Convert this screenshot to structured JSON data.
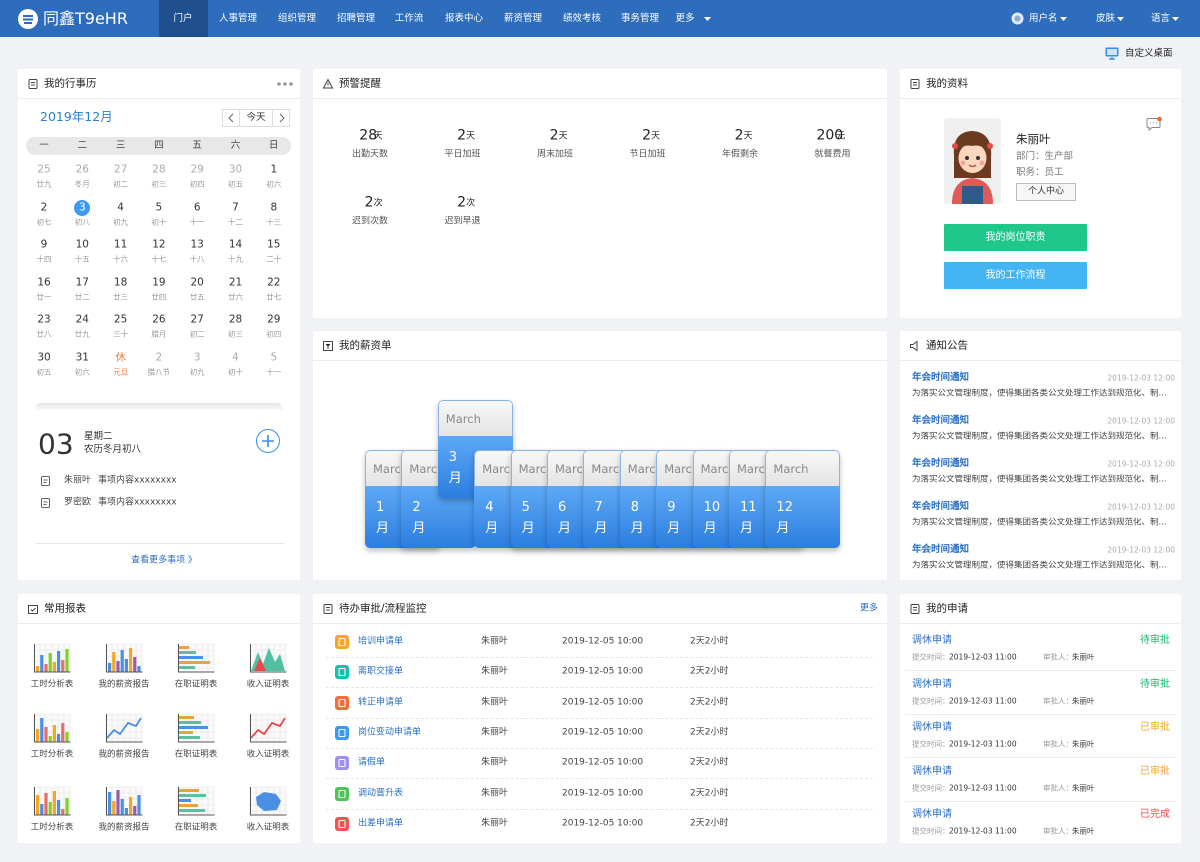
{
  "nav": {
    "logo": "同鑫T9eHR",
    "items": [
      "门户",
      "人事管理",
      "组织管理",
      "招聘管理",
      "工作流",
      "报表中心",
      "薪资管理",
      "绩效考核",
      "事务管理",
      "更多"
    ],
    "active": 0,
    "user": "用户名",
    "skin": "皮肤",
    "language": "语言"
  },
  "toolbar": {
    "customize": "自定义桌面"
  },
  "calendar": {
    "title": "我的行事历",
    "month": "2019年12月",
    "today_button": "今天",
    "weekdays": [
      "一",
      "二",
      "三",
      "四",
      "五",
      "六",
      "日"
    ],
    "prev_days": [
      {
        "day": "25",
        "lunar": "廿九"
      },
      {
        "day": "26",
        "lunar": "冬月"
      },
      {
        "day": "27",
        "lunar": "初二"
      },
      {
        "day": "28",
        "lunar": "初三"
      },
      {
        "day": "29",
        "lunar": "初四"
      },
      {
        "day": "30",
        "lunar": "初五"
      }
    ],
    "days": [
      {
        "day": "1",
        "lunar": "初六"
      },
      {
        "day": "2",
        "lunar": "初七"
      },
      {
        "day": "3",
        "lunar": "初八"
      },
      {
        "day": "4",
        "lunar": "初九"
      },
      {
        "day": "5",
        "lunar": "初十"
      },
      {
        "day": "6",
        "lunar": "十一"
      },
      {
        "day": "7",
        "lunar": "十二"
      },
      {
        "day": "8",
        "lunar": "十三"
      },
      {
        "day": "9",
        "lunar": "十四"
      },
      {
        "day": "10",
        "lunar": "十五"
      },
      {
        "day": "11",
        "lunar": "十六"
      },
      {
        "day": "12",
        "lunar": "十七"
      },
      {
        "day": "13",
        "lunar": "十八"
      },
      {
        "day": "14",
        "lunar": "十九"
      },
      {
        "day": "15",
        "lunar": "二十"
      },
      {
        "day": "16",
        "lunar": "廿一"
      },
      {
        "day": "17",
        "lunar": "廿二"
      },
      {
        "day": "18",
        "lunar": "廿三"
      },
      {
        "day": "19",
        "lunar": "廿四"
      },
      {
        "day": "20",
        "lunar": "廿五"
      },
      {
        "day": "21",
        "lunar": "廿六"
      },
      {
        "day": "22",
        "lunar": "廿七"
      },
      {
        "day": "23",
        "lunar": "廿八"
      },
      {
        "day": "24",
        "lunar": "廿九"
      },
      {
        "day": "25",
        "lunar": "三十"
      },
      {
        "day": "26",
        "lunar": "腊月"
      },
      {
        "day": "27",
        "lunar": "初二"
      },
      {
        "day": "28",
        "lunar": "初三"
      },
      {
        "day": "29",
        "lunar": "初四"
      },
      {
        "day": "30",
        "lunar": "初五"
      },
      {
        "day": "31",
        "lunar": "初六"
      }
    ],
    "next_days": [
      {
        "day": "休",
        "lunar": "元旦",
        "color": "#f0813e"
      },
      {
        "day": "2",
        "lunar": "腊八节"
      },
      {
        "day": "3",
        "lunar": "初九"
      },
      {
        "day": "4",
        "lunar": "初十"
      },
      {
        "day": "5",
        "lunar": "十一"
      }
    ],
    "selected_index": 2,
    "detail": {
      "day": "03",
      "weekday": "星期二",
      "lunar": "农历冬月初八",
      "events": [
        {
          "name": "朱丽叶",
          "content": "事项内容xxxxxxxx"
        },
        {
          "name": "罗密欧",
          "content": "事项内容xxxxxxxx"
        }
      ],
      "more": "查看更多事项 》"
    }
  },
  "alerts": {
    "title": "预警提醒",
    "items": [
      {
        "value": 28,
        "unit": "天",
        "label": "出勤天数"
      },
      {
        "value": 2,
        "unit": "天",
        "label": "平日加班"
      },
      {
        "value": 2,
        "unit": "天",
        "label": "周末加班"
      },
      {
        "value": 2,
        "unit": "天",
        "label": "节日加班"
      },
      {
        "value": 2,
        "unit": "天",
        "label": "年假剩余"
      },
      {
        "value": 200,
        "unit": "元",
        "label": "就餐费用"
      },
      {
        "value": 2,
        "unit": "次",
        "label": "迟到次数"
      },
      {
        "value": 2,
        "unit": "次",
        "label": "迟到早退"
      }
    ]
  },
  "profile": {
    "title": "我的资料",
    "name": "朱丽叶",
    "department": "部门：生产部",
    "position": "职务：员工",
    "center_button": "个人中心",
    "buttons": [
      {
        "label": "我的岗位职责",
        "color": "#1fc78c"
      },
      {
        "label": "我的工作流程",
        "color": "#45b4f3"
      }
    ]
  },
  "payslip": {
    "title": "我的薪资单",
    "raised": 2,
    "cards": [
      {
        "header": "March",
        "month": "1月"
      },
      {
        "header": "March",
        "month": "2月"
      },
      {
        "header": "March",
        "month": "3月"
      },
      {
        "header": "March",
        "month": "4月"
      },
      {
        "header": "March",
        "month": "5月"
      },
      {
        "header": "March",
        "month": "6月"
      },
      {
        "header": "March",
        "month": "7月"
      },
      {
        "header": "March",
        "month": "8月"
      },
      {
        "header": "March",
        "month": "9月"
      },
      {
        "header": "March",
        "month": "10月"
      },
      {
        "header": "March",
        "month": "11月"
      },
      {
        "header": "March",
        "month": "12月"
      }
    ]
  },
  "notices": {
    "title": "通知公告",
    "items": [
      {
        "title": "年会时间通知",
        "time": "2019-12-03 12:00",
        "text": "为落实公文管理制度，使得集团各类公文处理工作达到规范化、制..."
      },
      {
        "title": "年会时间通知",
        "time": "2019-12-03 12:00",
        "text": "为落实公文管理制度，使得集团各类公文处理工作达到规范化、制..."
      },
      {
        "title": "年会时间通知",
        "time": "2019-12-03 12:00",
        "text": "为落实公文管理制度，使得集团各类公文处理工作达到规范化、制..."
      },
      {
        "title": "年会时间通知",
        "time": "2019-12-03 12:00",
        "text": "为落实公文管理制度，使得集团各类公文处理工作达到规范化、制..."
      },
      {
        "title": "年会时间通知",
        "time": "2019-12-03 12:00",
        "text": "为落实公文管理制度，使得集团各类公文处理工作达到规范化、制..."
      }
    ]
  },
  "reports": {
    "title": "常用报表",
    "items": [
      "工时分析表",
      "我的薪资报告",
      "在职证明表",
      "收入证明表",
      "工时分析表",
      "我的薪资报告",
      "在职证明表",
      "收入证明表",
      "工时分析表",
      "我的薪资报告",
      "在职证明表",
      "收入证明表"
    ]
  },
  "todo": {
    "title": "待办审批/流程监控",
    "more": "更多",
    "rows": [
      {
        "name": "培训申请单",
        "color": "#f5a623",
        "person": "朱丽叶",
        "time": "2019-12-05 10:00",
        "duration": "2天2小时"
      },
      {
        "name": "离职交接单",
        "color": "#1bbfae",
        "person": "朱丽叶",
        "time": "2019-12-05 10:00",
        "duration": "2天2小时"
      },
      {
        "name": "转正申请单",
        "color": "#f36d3d",
        "person": "朱丽叶",
        "time": "2019-12-05 10:00",
        "duration": "2天2小时"
      },
      {
        "name": "岗位变动申请单",
        "color": "#3a9bf0",
        "person": "朱丽叶",
        "time": "2019-12-05 10:00",
        "duration": "2天2小时"
      },
      {
        "name": "请假单",
        "color": "#a08ef2",
        "person": "朱丽叶",
        "time": "2019-12-05 10:00",
        "duration": "2天2小时"
      },
      {
        "name": "调动晋升表",
        "color": "#4cc35a",
        "person": "朱丽叶",
        "time": "2019-12-05 10:00",
        "duration": "2天2小时"
      },
      {
        "name": "出差申请单",
        "color": "#f05454",
        "person": "朱丽叶",
        "time": "2019-12-05 10:00",
        "duration": "2天2小时"
      }
    ]
  },
  "applications": {
    "title": "我的申请",
    "submit_label": "提交时间：",
    "approver_label": "审批人：",
    "items": [
      {
        "title": "调休申请",
        "status": "待审批",
        "status_color": "#1fb36b",
        "time": "2019-12-03 11:00",
        "approver": "朱丽叶"
      },
      {
        "title": "调休申请",
        "status": "待审批",
        "status_color": "#1fb36b",
        "time": "2019-12-03 11:00",
        "approver": "朱丽叶"
      },
      {
        "title": "调休申请",
        "status": "已审批",
        "status_color": "#f5a623",
        "time": "2019-12-03 11:00",
        "approver": "朱丽叶"
      },
      {
        "title": "调休申请",
        "status": "已审批",
        "status_color": "#f5a623",
        "time": "2019-12-03 11:00",
        "approver": "朱丽叶"
      },
      {
        "title": "调休申请",
        "status": "已完成",
        "status_color": "#f04848",
        "time": "2019-12-03 11:00",
        "approver": "朱丽叶"
      }
    ]
  }
}
